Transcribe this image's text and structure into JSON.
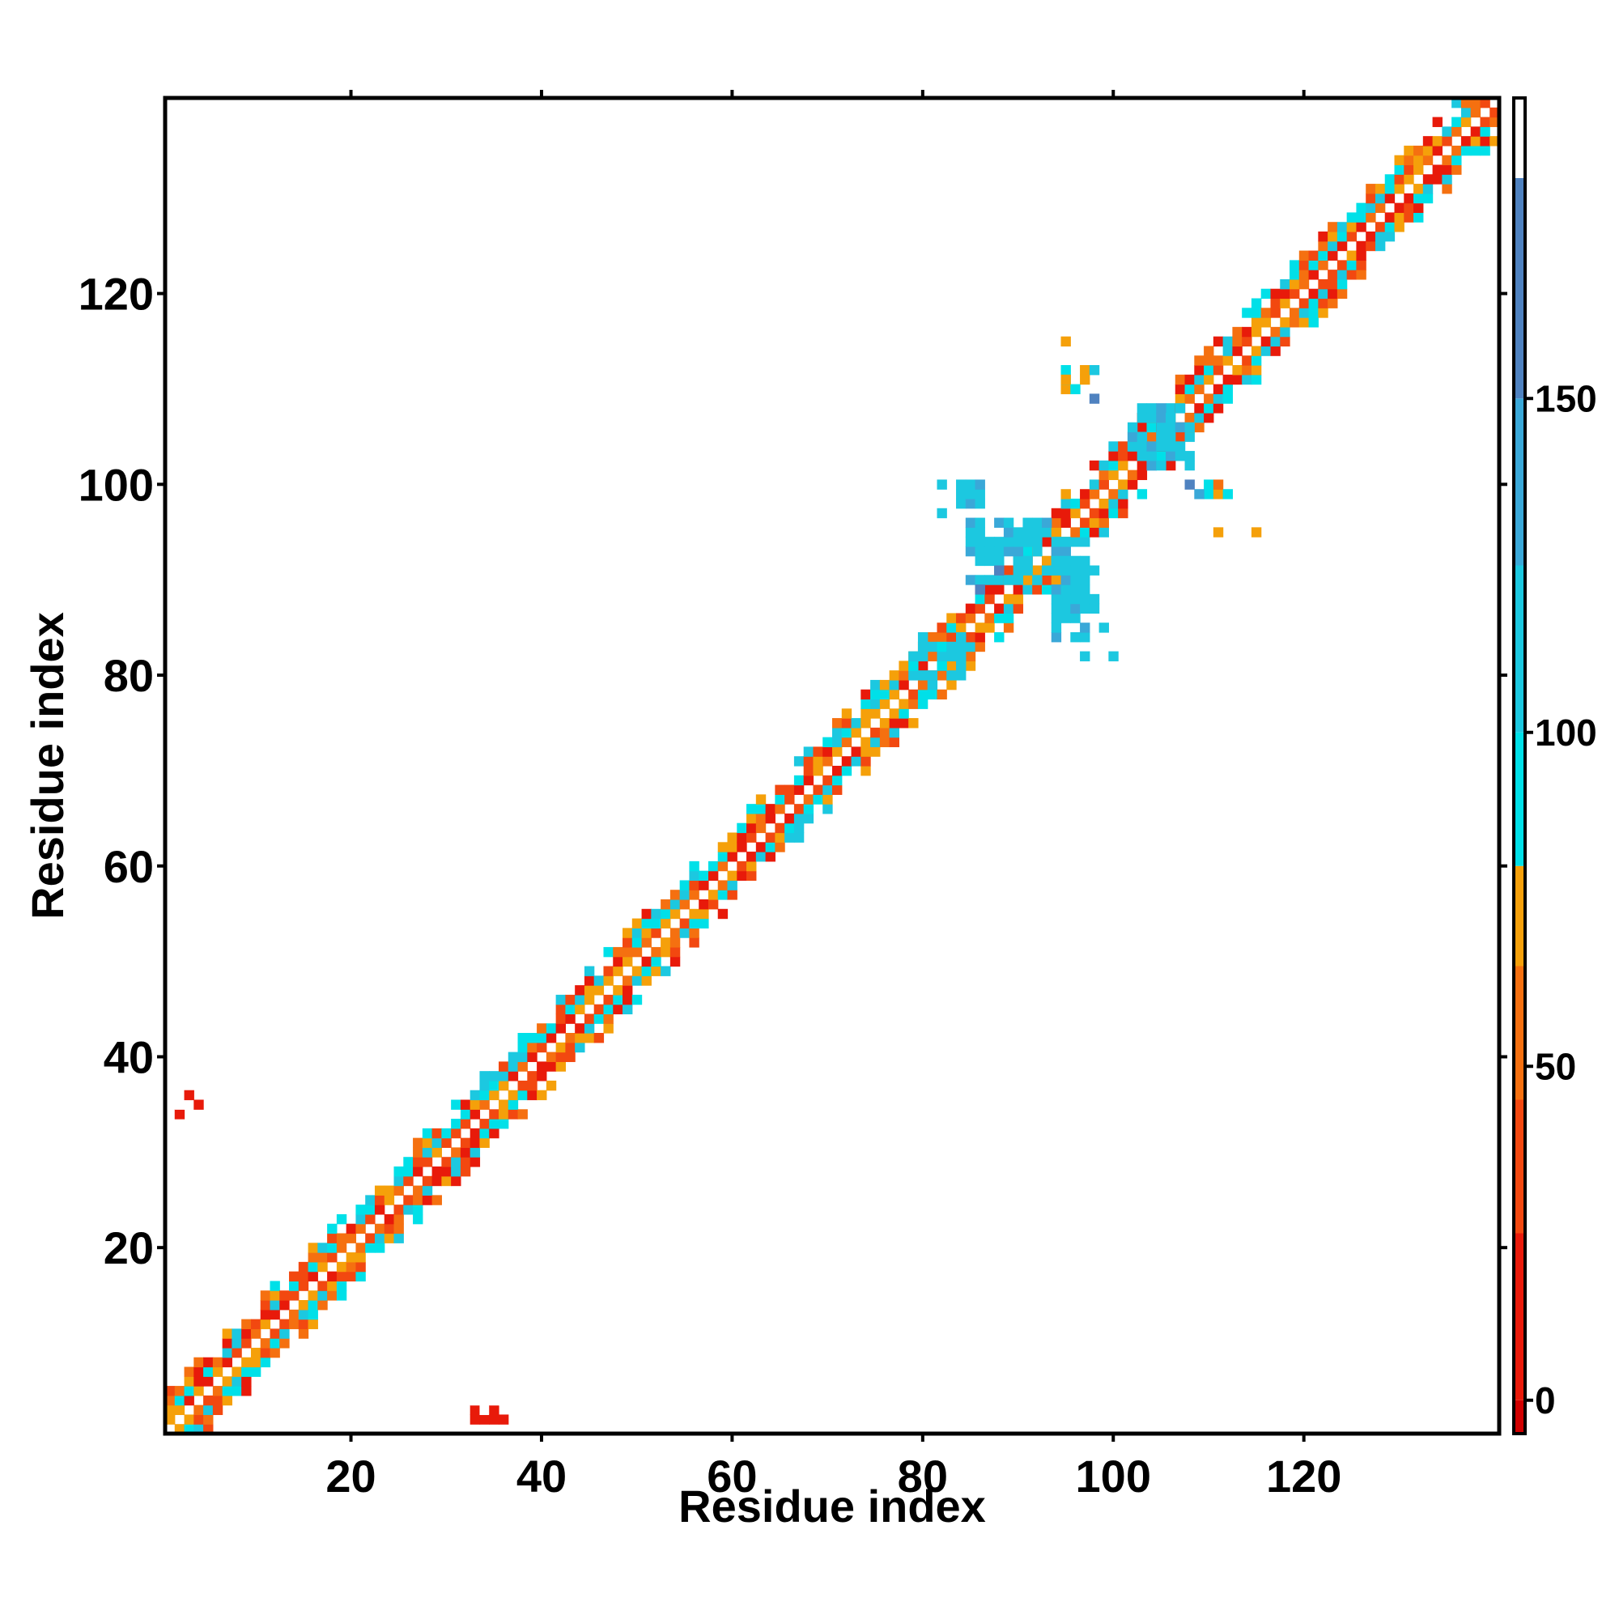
{
  "chart_data": {
    "type": "heatmap",
    "title": "",
    "xlabel": "Residue index",
    "ylabel": "Residue index",
    "xlim": [
      1,
      140
    ],
    "ylim": [
      1,
      140
    ],
    "xticks": [
      20,
      40,
      60,
      80,
      100,
      120
    ],
    "yticks": [
      20,
      40,
      60,
      80,
      100,
      120
    ],
    "grid": false,
    "colorbar": {
      "range": [
        -5,
        195
      ],
      "ticks": [
        0,
        50,
        100,
        150
      ],
      "bands": [
        {
          "from": -5,
          "to": 0,
          "color": "#d00000"
        },
        {
          "from": 0,
          "to": 25,
          "color": "#e81a0a"
        },
        {
          "from": 25,
          "to": 45,
          "color": "#f24810"
        },
        {
          "from": 45,
          "to": 65,
          "color": "#f57010"
        },
        {
          "from": 65,
          "to": 80,
          "color": "#f5a00a"
        },
        {
          "from": 80,
          "to": 100,
          "color": "#00e0e8"
        },
        {
          "from": 100,
          "to": 125,
          "color": "#1cc8e0"
        },
        {
          "from": 125,
          "to": 150,
          "color": "#3aa8d8"
        },
        {
          "from": 150,
          "to": 183,
          "color": "#4f82c0"
        },
        {
          "from": 183,
          "to": 195,
          "color": "#ffffff"
        }
      ]
    },
    "offdiag_regions": [
      {
        "x": [
          2,
          4
        ],
        "y": [
          34,
          36
        ],
        "value": 5
      },
      {
        "x": [
          33,
          36
        ],
        "y": [
          2,
          4
        ],
        "value": 5
      },
      {
        "x": [
          79,
          84
        ],
        "y": [
          80,
          84
        ],
        "value": 110
      },
      {
        "x": [
          85,
          95
        ],
        "y": [
          90,
          96
        ],
        "value": 115
      },
      {
        "x": [
          94,
          98
        ],
        "y": [
          84,
          92
        ],
        "value": 115
      },
      {
        "x": [
          102,
          108
        ],
        "y": [
          102,
          108
        ],
        "value": 120
      },
      {
        "x": [
          84,
          86
        ],
        "y": [
          98,
          100
        ],
        "value": 120
      },
      {
        "x": [
          110,
          112
        ],
        "y": [
          99,
          100
        ],
        "value": 75
      },
      {
        "x": [
          95,
          97
        ],
        "y": [
          110,
          112
        ],
        "value": 75
      }
    ],
    "sparse_cells": [
      [
        95,
        115,
        72
      ],
      [
        95,
        111,
        72
      ],
      [
        98,
        112,
        110
      ],
      [
        98,
        109,
        150
      ],
      [
        82,
        100,
        110
      ],
      [
        82,
        97,
        120
      ],
      [
        108,
        100,
        150
      ],
      [
        109,
        99,
        130
      ],
      [
        111,
        95,
        72
      ],
      [
        115,
        95,
        72
      ],
      [
        97,
        82,
        120
      ],
      [
        100,
        82,
        110
      ],
      [
        99,
        85,
        110
      ],
      [
        86,
        89,
        150
      ],
      [
        88,
        91,
        150
      ]
    ]
  }
}
